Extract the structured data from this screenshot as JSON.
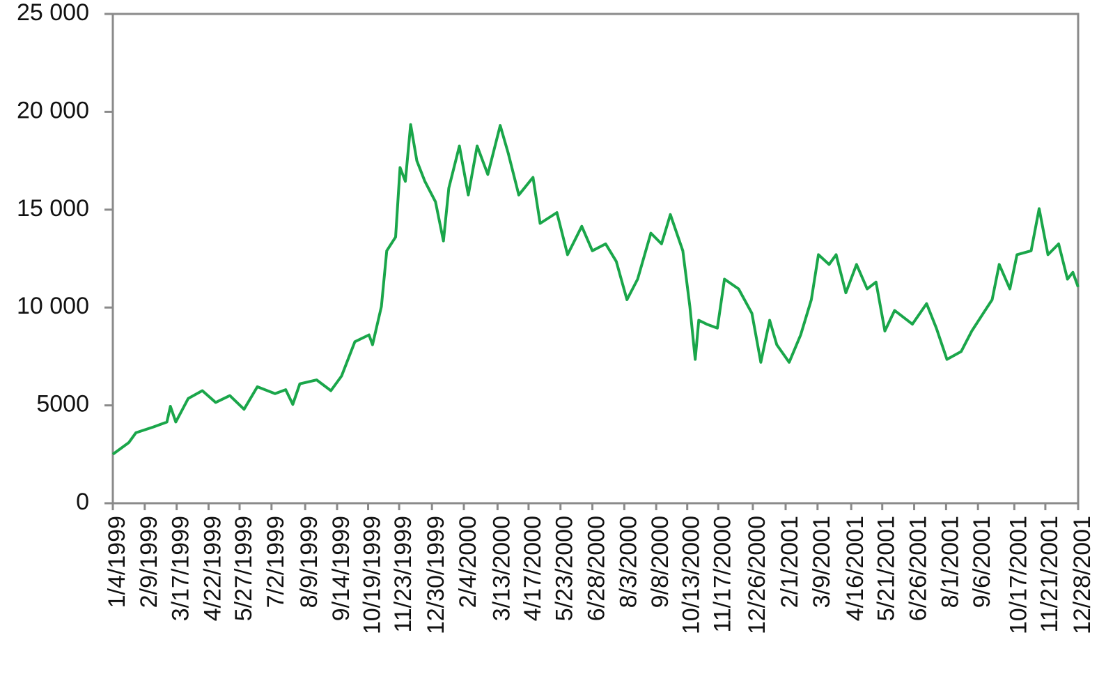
{
  "chart_data": {
    "type": "line",
    "x": [
      "1/4/1999",
      "1/22/1999",
      "1/30/1999",
      "2/19/1999",
      "3/6/1999",
      "3/10/1999",
      "3/16/1999",
      "3/30/1999",
      "4/15/1999",
      "4/30/1999",
      "5/16/1999",
      "6/1/1999",
      "6/16/1999",
      "7/6/1999",
      "7/18/1999",
      "7/26/1999",
      "8/3/1999",
      "8/22/1999",
      "9/7/1999",
      "9/19/1999",
      "10/4/1999",
      "10/20/1999",
      "10/24/1999",
      "11/3/1999",
      "11/9/1999",
      "11/19/1999",
      "11/24/1999",
      "11/30/1999",
      "12/6/1999",
      "12/13/1999",
      "12/22/1999",
      "1/3/2000",
      "1/12/2000",
      "1/18/2000",
      "1/30/2000",
      "2/9/2000",
      "2/19/2000",
      "3/2/2000",
      "3/16/2000",
      "3/25/2000",
      "4/6/2000",
      "4/22/2000",
      "4/30/2000",
      "5/19/2000",
      "5/31/2000",
      "6/16/2000",
      "6/28/2000",
      "7/13/2000",
      "7/25/2000",
      "8/6/2000",
      "8/18/2000",
      "9/2/2000",
      "9/14/2000",
      "9/24/2000",
      "10/8/2000",
      "10/16/2000",
      "10/22/2000",
      "10/26/2000",
      "11/4/2000",
      "11/16/2000",
      "11/24/2000",
      "12/10/2000",
      "12/25/2000",
      "1/4/2001",
      "1/14/2001",
      "1/22/2001",
      "2/5/2001",
      "2/18/2001",
      "3/2/2001",
      "3/10/2001",
      "3/22/2001",
      "3/30/2001",
      "4/10/2001",
      "4/22/2001",
      "5/4/2001",
      "5/14/2001",
      "5/24/2001",
      "6/4/2001",
      "6/24/2001",
      "7/10/2001",
      "7/21/2001",
      "8/2/2001",
      "8/18/2001",
      "8/30/2001",
      "9/14/2001",
      "9/22/2001",
      "9/30/2001",
      "10/12/2001",
      "10/20/2001",
      "11/5/2001",
      "11/14/2001",
      "11/24/2001",
      "12/6/2001",
      "12/16/2001",
      "12/22/2001",
      "12/28/2001"
    ],
    "series": [
      {
        "color": "#1aa64a",
        "values": [
          2500,
          3100,
          3600,
          3900,
          4150,
          4950,
          4150,
          5350,
          5750,
          5150,
          5500,
          4800,
          5950,
          5600,
          5800,
          5050,
          6100,
          6300,
          5750,
          6500,
          8250,
          8600,
          8100,
          10050,
          12900,
          13600,
          17150,
          16450,
          19350,
          17500,
          16450,
          15400,
          13400,
          16100,
          18250,
          15750,
          18250,
          16800,
          19300,
          17900,
          15750,
          16650,
          14300,
          14850,
          12700,
          14150,
          12900,
          13250,
          12350,
          10400,
          11450,
          13800,
          13250,
          14750,
          12900,
          10050,
          7350,
          9350,
          9150,
          8950,
          11450,
          10950,
          9700,
          7200,
          9350,
          8100,
          7200,
          8600,
          10400,
          12700,
          12200,
          12700,
          10750,
          12200,
          10950,
          11300,
          8800,
          9850,
          9150,
          10200,
          8950,
          7350,
          7750,
          8800,
          9850,
          10400,
          12200,
          10950,
          12700,
          12900,
          15050,
          12700,
          13250,
          11450,
          11800,
          11050
        ]
      }
    ],
    "xlim": [
      "1/4/1999",
      "12/28/2001"
    ],
    "xticks": [
      "1/4/1999",
      "2/9/1999",
      "3/17/1999",
      "4/22/1999",
      "5/27/1999",
      "7/2/1999",
      "8/9/1999",
      "9/14/1999",
      "10/19/1999",
      "11/23/1999",
      "12/30/1999",
      "2/4/2000",
      "3/13/2000",
      "4/17/2000",
      "5/23/2000",
      "6/28/2000",
      "8/3/2000",
      "9/8/2000",
      "10/13/2000",
      "11/17/2000",
      "12/26/2000",
      "2/1/2001",
      "3/9/2001",
      "4/16/2001",
      "5/21/2001",
      "6/26/2001",
      "8/1/2001",
      "9/6/2001",
      "10/17/2001",
      "11/21/2001",
      "12/28/2001"
    ],
    "ylim": [
      0,
      25000
    ],
    "yticks": [
      0,
      5000,
      {
        "value": 10000,
        "label": "10 000"
      },
      {
        "value": 15000,
        "label": "15 000"
      },
      {
        "value": 20000,
        "label": "20 000"
      },
      {
        "value": 25000,
        "label": "25 000"
      }
    ],
    "grid": false
  }
}
